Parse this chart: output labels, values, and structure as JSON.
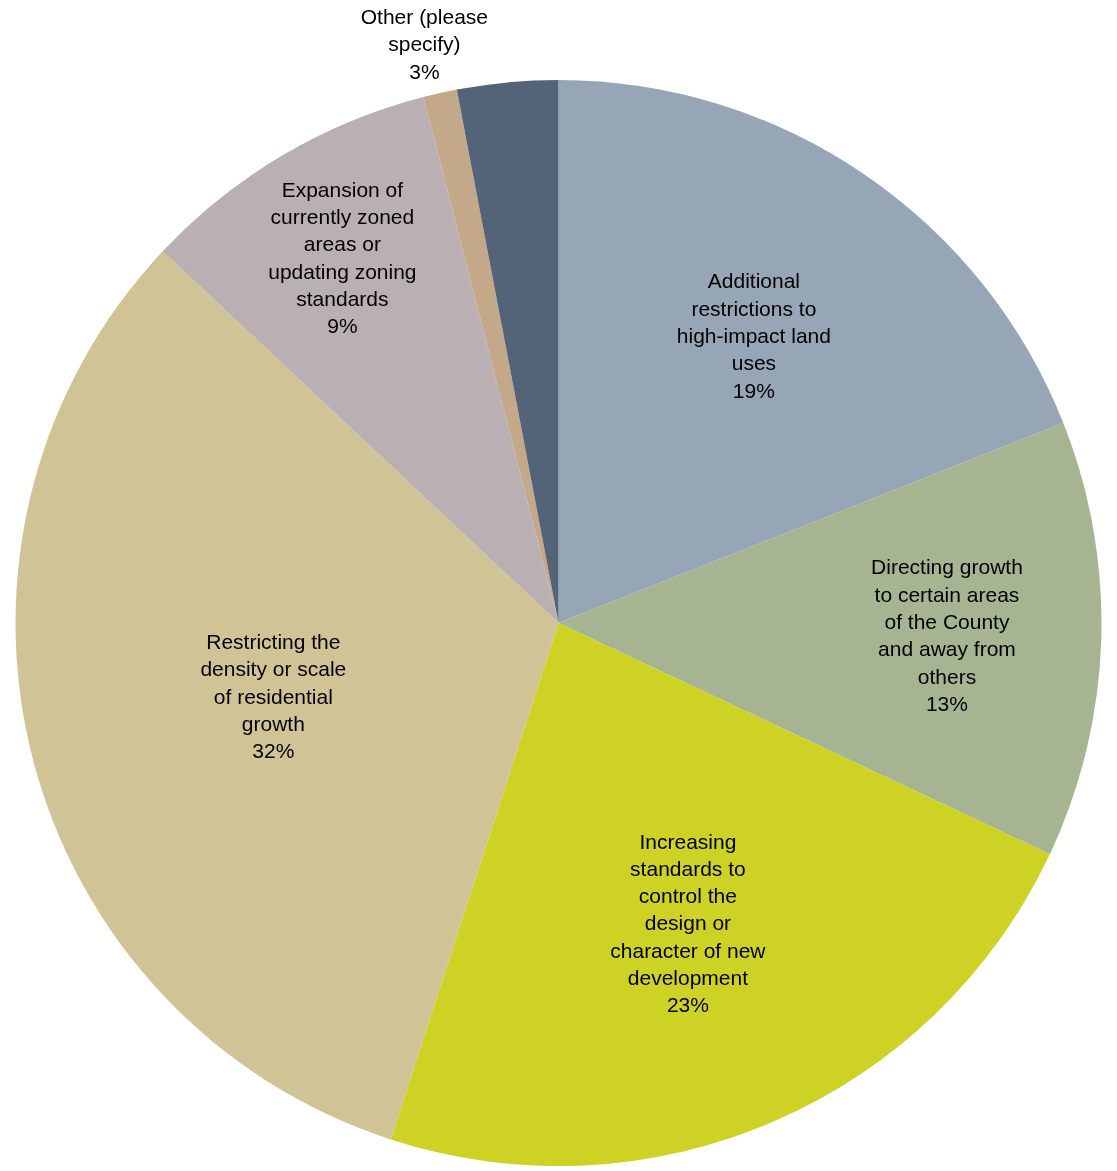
{
  "chart_data": {
    "type": "pie",
    "categories": [
      "Additional restrictions to high-impact land uses",
      "Directing growth to certain areas of the County and away from others",
      "Increasing standards to control the design or character of new development",
      "Restricting the density or scale of residential growth",
      "Expansion of currently zoned areas or updating zoning standards",
      null,
      "Other (please specify)"
    ],
    "values": [
      19,
      13,
      23,
      32,
      9,
      1,
      3
    ],
    "value_labels": [
      "19%",
      "13%",
      "23%",
      "32%",
      "9%",
      null,
      "3%"
    ],
    "colors": [
      "#97a6b6",
      "#a6b491",
      "#ced225",
      "#d0c496",
      "#bab0b3",
      "#c4a88a",
      "#536378"
    ],
    "legend": false
  }
}
